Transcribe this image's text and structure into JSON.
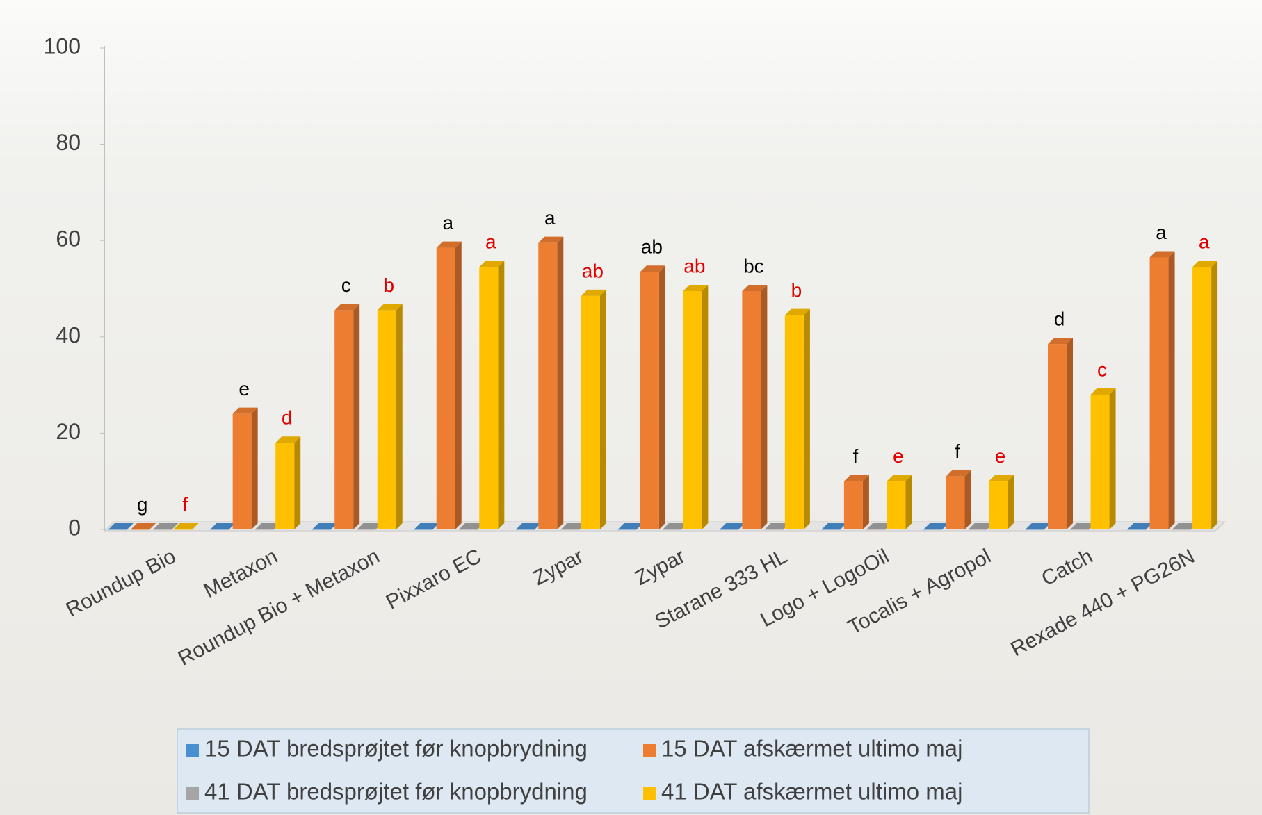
{
  "chart_data": {
    "type": "bar3d",
    "categories": [
      "Roundup Bio",
      "Metaxon",
      "Roundup Bio + Metaxon",
      "Pixxaro EC",
      "Zypar",
      "Zypar",
      "Starane 333 HL",
      "Logo + LogoOil",
      "Tocalis + Agropol",
      "Catch",
      "Rexade 440 + PG26N"
    ],
    "series": [
      {
        "name": "15 DAT bredsprøjtet før knopbrydning",
        "color": "#4a8fd0",
        "values": [
          0,
          0,
          0,
          0,
          0,
          0,
          0,
          0,
          0,
          0,
          0
        ]
      },
      {
        "name": "15 DAT afskærmet ultimo maj",
        "color": "#ed7d31",
        "values": [
          0,
          24,
          45.5,
          58.5,
          59.5,
          53.5,
          49.5,
          10,
          11,
          38.5,
          56.5
        ],
        "labels": [
          "g",
          "e",
          "c",
          "a",
          "a",
          "ab",
          "bc",
          "f",
          "f",
          "d",
          "a"
        ],
        "label_color": "#000000"
      },
      {
        "name": "41 DAT bredsprøjtet før knopbrydning",
        "color": "#a5a5a5",
        "values": [
          0,
          0,
          0,
          0,
          0,
          0,
          0,
          0,
          0,
          0,
          0
        ]
      },
      {
        "name": "41 DAT afskærmet ultimo maj",
        "color": "#ffc000",
        "values": [
          0,
          18,
          45.5,
          54.5,
          48.5,
          49.5,
          44.5,
          10,
          10,
          28,
          54.5
        ],
        "labels": [
          "f",
          "d",
          "b",
          "a",
          "ab",
          "ab",
          "b",
          "e",
          "e",
          "c",
          "a"
        ],
        "label_color": "#e00000"
      }
    ],
    "ylim": [
      0,
      100
    ],
    "yticks": [
      0,
      20,
      40,
      60,
      80,
      100
    ],
    "grid": false,
    "legend": "bottom"
  }
}
